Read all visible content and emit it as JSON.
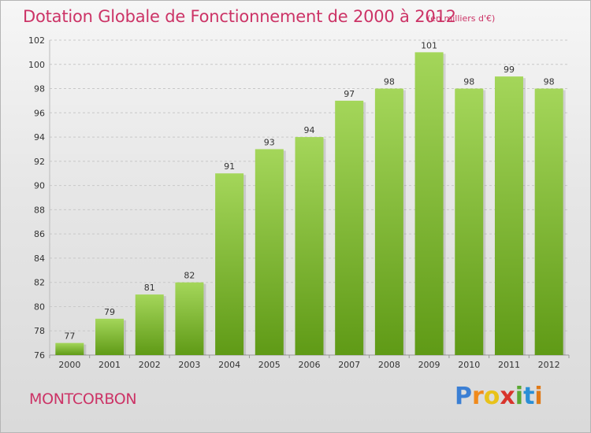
{
  "header": {
    "title": "Dotation Globale de Fonctionnement de 2000 à 2012",
    "subtitle": "(en milliers d'€)"
  },
  "commune": "MONTCORBON",
  "logo": {
    "text": "Proxiti",
    "letters": [
      {
        "ch": "P",
        "color": "#3b7fd4"
      },
      {
        "ch": "r",
        "color": "#f08a1c"
      },
      {
        "ch": "o",
        "color": "#e8c21a"
      },
      {
        "ch": "x",
        "color": "#d8342c"
      },
      {
        "ch": "i",
        "color": "#5aa832"
      },
      {
        "ch": "t",
        "color": "#2a8fd6"
      },
      {
        "ch": "i",
        "color": "#e07a18"
      }
    ]
  },
  "chart_data": {
    "type": "bar",
    "title": "Dotation Globale de Fonctionnement de 2000 à 2012",
    "subtitle": "(en milliers d'€)",
    "categories": [
      "2000",
      "2001",
      "2002",
      "2003",
      "2004",
      "2005",
      "2006",
      "2007",
      "2008",
      "2009",
      "2010",
      "2011",
      "2012"
    ],
    "values": [
      77,
      79,
      81,
      82,
      91,
      93,
      94,
      97,
      98,
      101,
      98,
      99,
      98
    ],
    "ylim": [
      76,
      102
    ],
    "yticks": [
      76,
      78,
      80,
      82,
      84,
      86,
      88,
      90,
      92,
      94,
      96,
      98,
      100,
      102
    ],
    "grid": true,
    "bar_color_top": "#a4d65a",
    "bar_color_bottom": "#5f9a16",
    "label_color": "#333333"
  }
}
